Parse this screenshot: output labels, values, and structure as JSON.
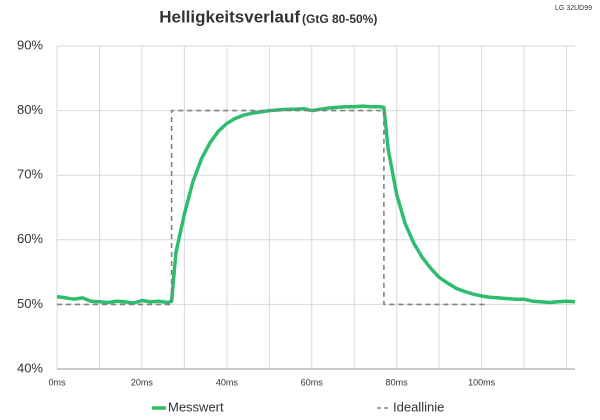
{
  "chart_data": {
    "type": "line",
    "title": "Helligkeitsverlauf",
    "subtitle": "(GtG 80-50%)",
    "annotation": "LG 32UD99",
    "x": [
      0,
      2,
      4,
      6,
      8,
      10,
      12,
      14,
      16,
      18,
      20,
      22,
      24,
      26,
      27,
      28,
      30,
      32,
      34,
      36,
      38,
      40,
      42,
      44,
      46,
      48,
      50,
      52,
      54,
      56,
      58,
      60,
      62,
      64,
      66,
      68,
      70,
      72,
      74,
      76,
      77,
      78,
      80,
      82,
      84,
      86,
      88,
      90,
      92,
      94,
      96,
      98,
      100,
      102,
      104,
      106,
      108,
      110,
      112,
      114,
      116,
      118,
      120,
      122
    ],
    "series": [
      {
        "name": "Messwert",
        "color": "#2ebd6e",
        "dashed": false,
        "values": [
          51.2,
          51,
          50.8,
          51,
          50.5,
          50.4,
          50.3,
          50.5,
          50.4,
          50.2,
          50.6,
          50.4,
          50.5,
          50.3,
          50.5,
          58,
          64,
          69,
          72.5,
          75,
          76.8,
          78,
          78.8,
          79.3,
          79.6,
          79.8,
          80,
          80.1,
          80.2,
          80.2,
          80.3,
          80,
          80.2,
          80.4,
          80.5,
          80.6,
          80.6,
          80.7,
          80.6,
          80.6,
          80.5,
          74,
          67,
          62.5,
          59.5,
          57.3,
          55.6,
          54.2,
          53.3,
          52.5,
          52,
          51.6,
          51.3,
          51.1,
          51,
          50.9,
          50.8,
          50.8,
          50.5,
          50.4,
          50.3,
          50.4,
          50.5,
          50.4
        ]
      },
      {
        "name": "Ideallinie",
        "color": "#808080",
        "dashed": true,
        "x": [
          0,
          27,
          27,
          77,
          77,
          101
        ],
        "values": [
          50,
          50,
          80,
          80,
          50,
          50
        ]
      }
    ],
    "xlim": [
      0,
      122
    ],
    "ylim": [
      40,
      90
    ],
    "xticks": [
      {
        "value": 0,
        "label": "0ms"
      },
      {
        "value": 20,
        "label": "20ms"
      },
      {
        "value": 40,
        "label": "40ms"
      },
      {
        "value": 60,
        "label": "60ms"
      },
      {
        "value": 80,
        "label": "80ms"
      },
      {
        "value": 100,
        "label": "100ms"
      }
    ],
    "x_minor_gridlines": [
      10,
      30,
      50,
      70,
      90,
      110,
      120
    ],
    "yticks": [
      {
        "value": 40,
        "label": "40%"
      },
      {
        "value": 50,
        "label": "50%"
      },
      {
        "value": 60,
        "label": "60%"
      },
      {
        "value": 70,
        "label": "70%"
      },
      {
        "value": 80,
        "label": "80%"
      },
      {
        "value": 90,
        "label": "90%"
      }
    ],
    "grid": true,
    "legend": "bottom"
  }
}
